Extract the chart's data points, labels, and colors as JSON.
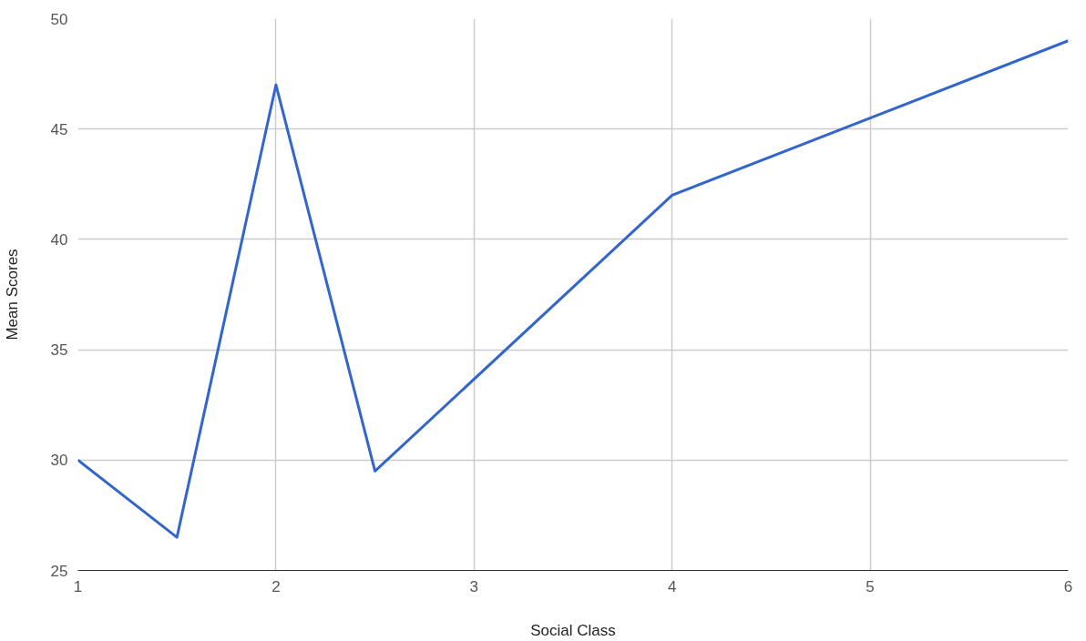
{
  "chart_data": {
    "type": "line",
    "xlabel": "Social Class",
    "ylabel": "Mean Scores",
    "x": [
      1,
      1.5,
      2,
      2.5,
      4,
      5,
      6
    ],
    "series": [
      {
        "color": "#3366cc",
        "values": [
          30,
          26.5,
          47,
          29.5,
          42,
          45.5,
          49
        ]
      }
    ],
    "xlim": [
      1,
      6
    ],
    "xticks": [
      1,
      2,
      3,
      4,
      5,
      6
    ],
    "ylim": [
      25,
      50
    ],
    "yticks": [
      25,
      30,
      35,
      40,
      45,
      50
    ],
    "grid": true,
    "marker": "none",
    "line_style": "solid"
  }
}
